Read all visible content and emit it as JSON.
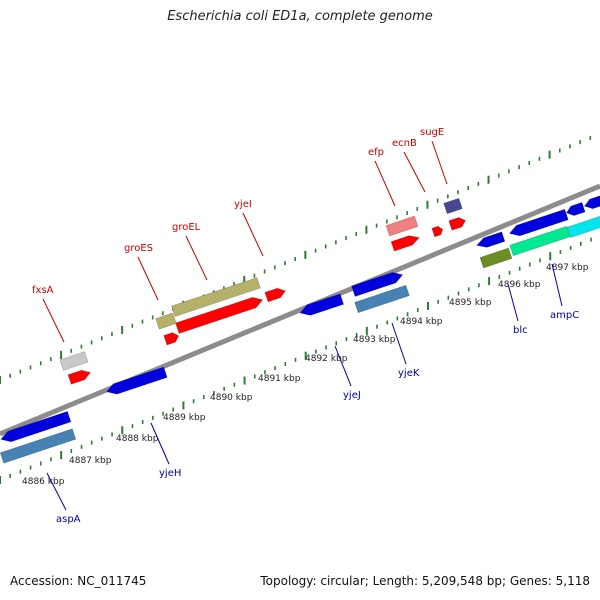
{
  "title": "Escherichia coli ED1a, complete genome",
  "footer": {
    "accession": "Accession: NC_011745",
    "topology": "Topology: circular; Length: 5,209,548 bp; Genes: 5,118"
  },
  "colors": {
    "backbone": "#8c8c8c",
    "tick_marks": "#2e7d32",
    "label_forward": "#cc0000",
    "label_reverse": "#0000aa"
  },
  "scale_labels": [
    "4886 kbp",
    "4887 kbp",
    "4888 kbp",
    "4889 kbp",
    "4890 kbp",
    "4891 kbp",
    "4892 kbp",
    "4893 kbp",
    "4894 kbp",
    "4895 kbp",
    "4896 kbp",
    "4897 kbp"
  ],
  "gene_labels_forward": [
    "fxsA",
    "groES",
    "groEL",
    "yjeI",
    "efp",
    "ecnB",
    "sugE"
  ],
  "gene_labels_reverse": [
    "aspA",
    "yjeH",
    "yjeJ",
    "yjeK",
    "blc",
    "ampC"
  ],
  "feature_colors": [
    "#ff0000",
    "#c8c8c8",
    "#b5b06a",
    "#f08080",
    "#484890",
    "#0000dd",
    "#4682b4",
    "#6b8e23",
    "#00e890",
    "#00e5ee"
  ]
}
